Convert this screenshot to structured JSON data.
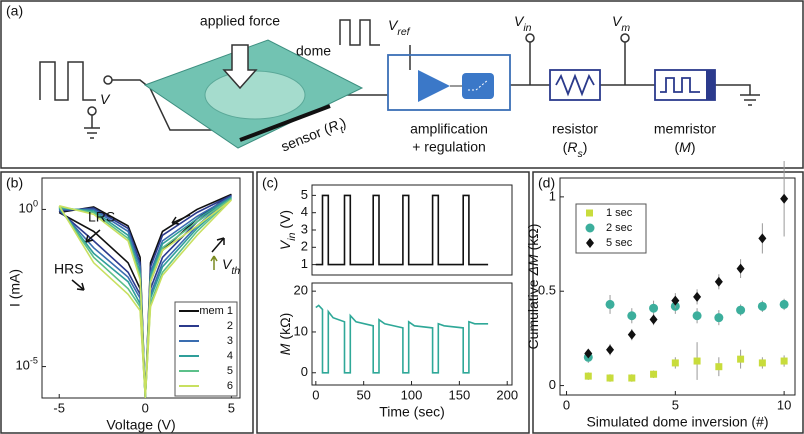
{
  "figure": {
    "panel_labels": [
      "(a)",
      "(b)",
      "(c)",
      "(d)"
    ],
    "diagram": {
      "applied_force": "applied force",
      "dome": "dome",
      "v": {
        "base": "V"
      },
      "v_ref": {
        "base": "V",
        "sub": "ref"
      },
      "v_in": {
        "base": "V",
        "sub": "in"
      },
      "v_m": {
        "base": "V",
        "sub": "m"
      },
      "sensor": {
        "text": "sensor",
        "open": "(",
        "base": "R",
        "sub": "t",
        "close": ")"
      },
      "amplification": [
        "amplification",
        "+ regulation"
      ],
      "resistor": {
        "name": "resistor",
        "symbol": {
          "open": "(",
          "base": "R",
          "sub": "s",
          "close": ")"
        }
      },
      "memristor": {
        "name": "memristor",
        "symbol": {
          "open": "(",
          "base": "M",
          "close": ")"
        }
      }
    }
  },
  "chart_data": [
    {
      "type": "line",
      "log_y": true,
      "x_label": "Voltage (V)",
      "y_label": "I (mA)",
      "annotations": {
        "lrs": "LRS",
        "hrs": "HRS",
        "vth": {
          "base": "V",
          "sub": "th"
        }
      },
      "xlim": [
        -6,
        5.5
      ],
      "xticks": [
        -5,
        0,
        5
      ],
      "ylim": [
        1e-06,
        10
      ],
      "yticks": [
        {
          "value": 1,
          "label": "10",
          "exponent": "0"
        },
        {
          "value": 1e-05,
          "label": "10",
          "exponent": "-5"
        }
      ],
      "legend": "lower right",
      "x": [
        -5,
        -3,
        -1,
        -0.3,
        0,
        0.3,
        1,
        3,
        5,
        3,
        1,
        0.3,
        0,
        -0.3,
        -1,
        -3,
        -5
      ],
      "series": [
        {
          "name": "mem 1",
          "color": "#111111",
          "values": [
            0.8,
            1.2,
            0.3,
            0.03,
            1e-06,
            0.02,
            0.2,
            1,
            3,
            0.5,
            0.05,
            0.005,
            1e-06,
            0.003,
            0.02,
            0.2,
            0.8
          ]
        },
        {
          "name": "2",
          "color": "#2b3a8c",
          "values": [
            0.9,
            1.1,
            0.25,
            0.02,
            1e-06,
            0.015,
            0.15,
            0.8,
            2.8,
            0.4,
            0.03,
            0.003,
            1e-06,
            0.002,
            0.01,
            0.1,
            0.9
          ]
        },
        {
          "name": "3",
          "color": "#3a6db0",
          "values": [
            1,
            1,
            0.2,
            0.015,
            1e-06,
            0.01,
            0.1,
            0.6,
            2.6,
            0.3,
            0.02,
            0.002,
            1e-06,
            0.0015,
            0.007,
            0.06,
            1
          ]
        },
        {
          "name": "4",
          "color": "#2f9e9a",
          "values": [
            1.1,
            0.9,
            0.15,
            0.01,
            1e-06,
            0.008,
            0.08,
            0.5,
            2.4,
            0.25,
            0.015,
            0.0015,
            1e-06,
            0.001,
            0.005,
            0.04,
            1.1
          ]
        },
        {
          "name": "5",
          "color": "#5cc08a",
          "values": [
            1.2,
            0.8,
            0.12,
            0.008,
            1e-06,
            0.006,
            0.06,
            0.4,
            2.2,
            0.2,
            0.01,
            0.001,
            1e-06,
            0.0008,
            0.003,
            0.03,
            1.2
          ]
        },
        {
          "name": "6",
          "color": "#c8e060",
          "values": [
            1.3,
            0.7,
            0.1,
            0.006,
            1e-06,
            0.005,
            0.05,
            0.3,
            2,
            0.15,
            0.008,
            0.0008,
            1e-06,
            0.0006,
            0.002,
            0.02,
            1.3
          ]
        }
      ]
    },
    {
      "type": "line",
      "y_label": {
        "base": "V",
        "sub": "in",
        "unit": "(V)"
      },
      "xlim": [
        -4,
        205
      ],
      "ylim": [
        0.4,
        5.6
      ],
      "yticks": [
        1,
        2,
        3,
        4,
        5
      ],
      "color": "#111111",
      "x": [
        0,
        7,
        7,
        13,
        13,
        30,
        30,
        36,
        36,
        60,
        60,
        66,
        66,
        91,
        91,
        97,
        97,
        122,
        122,
        128,
        128,
        154,
        154,
        160,
        160,
        180
      ],
      "values": [
        1,
        1,
        5,
        5,
        1,
        1,
        5,
        5,
        1,
        1,
        5,
        5,
        1,
        1,
        5,
        5,
        1,
        1,
        5,
        5,
        1,
        1,
        5,
        5,
        1,
        1
      ]
    },
    {
      "type": "line",
      "x_label": "Time (sec)",
      "y_label": {
        "symbol": "M",
        "unit": "(kΩ)"
      },
      "xlim": [
        -4,
        205
      ],
      "xticks": [
        0,
        50,
        100,
        150,
        200
      ],
      "ylim": [
        -3,
        22
      ],
      "yticks": [
        0,
        10,
        20
      ],
      "color": "#2fa898",
      "x": [
        0,
        3,
        7,
        7,
        13,
        13,
        18,
        30,
        30,
        36,
        36,
        42,
        60,
        60,
        66,
        66,
        72,
        91,
        91,
        97,
        97,
        103,
        122,
        122,
        128,
        128,
        134,
        154,
        154,
        160,
        160,
        166,
        180
      ],
      "values": [
        16,
        16.5,
        15.5,
        0,
        0,
        15,
        13.5,
        12.5,
        0,
        0,
        14,
        12.5,
        11.5,
        0,
        0,
        13,
        12,
        11,
        0,
        0,
        12.5,
        11.5,
        11,
        0,
        0,
        12,
        11.5,
        11,
        0,
        0,
        12.5,
        12,
        12
      ]
    },
    {
      "type": "scatter",
      "x_label": "Simulated dome inversion (#)",
      "y_label": {
        "text": "Cumulative",
        "symbol": "ΔM",
        "unit": "(kΩ)"
      },
      "xlim": [
        -0.3,
        10.5
      ],
      "xticks": [
        0,
        5,
        10
      ],
      "ylim": [
        -0.05,
        1.1
      ],
      "yticks": [
        0,
        0.5,
        1
      ],
      "legend": "upper left",
      "x": [
        1,
        2,
        3,
        4,
        5,
        6,
        7,
        8,
        9,
        10
      ],
      "series": [
        {
          "name": "1 sec",
          "color": "#c8dc3c",
          "marker": "square",
          "values": [
            0.05,
            0.04,
            0.04,
            0.06,
            0.12,
            0.13,
            0.1,
            0.14,
            0.12,
            0.13
          ],
          "errors": [
            0.02,
            0.02,
            0.02,
            0.02,
            0.03,
            0.1,
            0.05,
            0.05,
            0.03,
            0.03
          ]
        },
        {
          "name": "2 sec",
          "color": "#3cae9c",
          "marker": "circle",
          "values": [
            0.15,
            0.43,
            0.37,
            0.41,
            0.42,
            0.37,
            0.36,
            0.4,
            0.42,
            0.43
          ],
          "errors": [
            0.03,
            0.05,
            0.04,
            0.04,
            0.04,
            0.04,
            0.04,
            0.03,
            0.03,
            0.03
          ]
        },
        {
          "name": "5 sec",
          "color": "#111111",
          "marker": "diamond",
          "values": [
            0.17,
            0.19,
            0.27,
            0.35,
            0.45,
            0.47,
            0.55,
            0.62,
            0.78,
            0.99
          ],
          "errors": [
            0.02,
            0.03,
            0.03,
            0.03,
            0.04,
            0.04,
            0.04,
            0.05,
            0.08,
            0.2
          ]
        }
      ]
    }
  ]
}
